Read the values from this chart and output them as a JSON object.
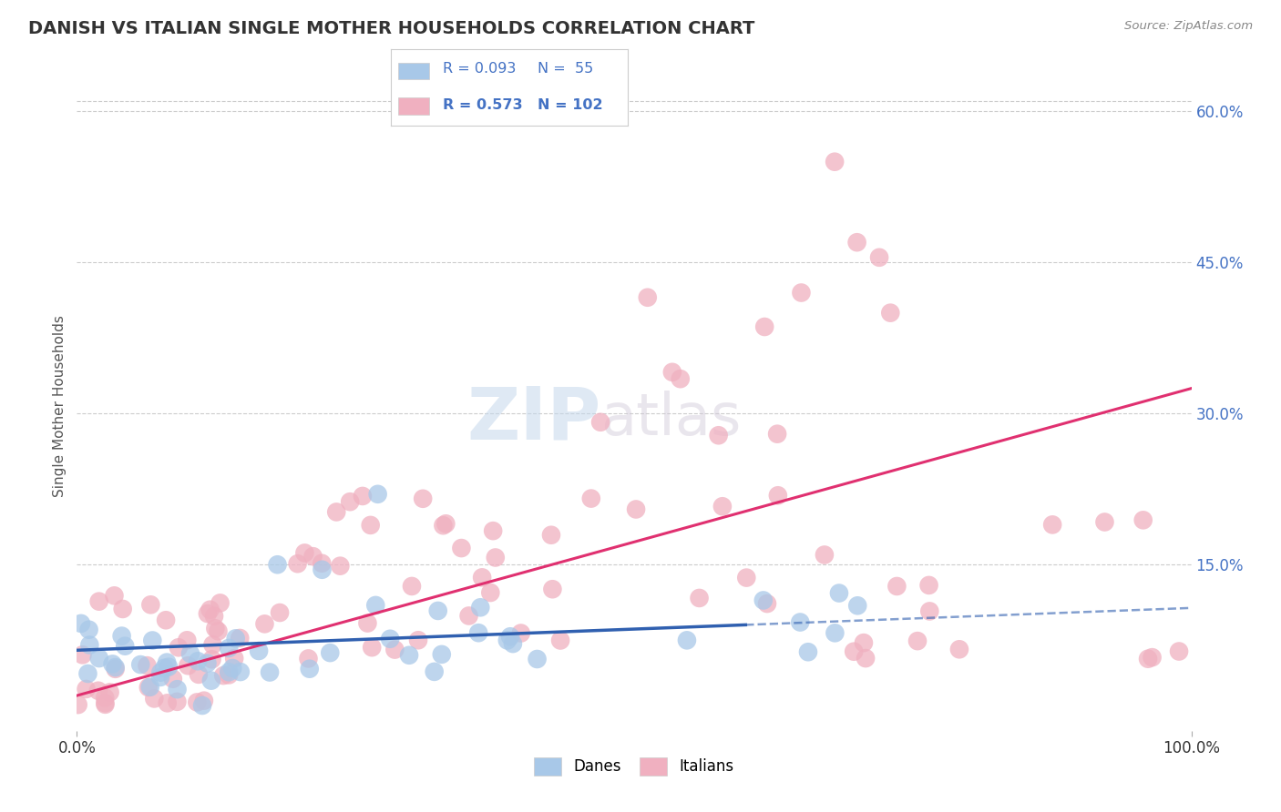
{
  "title": "DANISH VS ITALIAN SINGLE MOTHER HOUSEHOLDS CORRELATION CHART",
  "source": "Source: ZipAtlas.com",
  "ylabel": "Single Mother Households",
  "xlim": [
    0.0,
    100.0
  ],
  "ylim": [
    -0.015,
    0.63
  ],
  "yticks_right": [
    0.15,
    0.3,
    0.45,
    0.6
  ],
  "ytick_labels_right": [
    "15.0%",
    "30.0%",
    "45.0%",
    "60.0%"
  ],
  "xtick_left": 0.0,
  "xtick_right": 100.0,
  "xtick_label_left": "0.0%",
  "xtick_label_right": "100.0%",
  "danes_color": "#A8C8E8",
  "italians_color": "#F0B0C0",
  "danes_line_color": "#3060B0",
  "italians_line_color": "#E03070",
  "danes_R": 0.093,
  "danes_N": 55,
  "italians_R": 0.573,
  "italians_N": 102,
  "watermark_zip": "ZIP",
  "watermark_atlas": "atlas",
  "background_color": "#FFFFFF",
  "grid_color": "#CCCCCC",
  "legend_box_color": "#EEEEEE",
  "danes_label": "Danes",
  "italians_label": "Italians",
  "title_color": "#333333",
  "source_color": "#888888",
  "axis_label_color": "#555555",
  "right_tick_color": "#4472C4"
}
